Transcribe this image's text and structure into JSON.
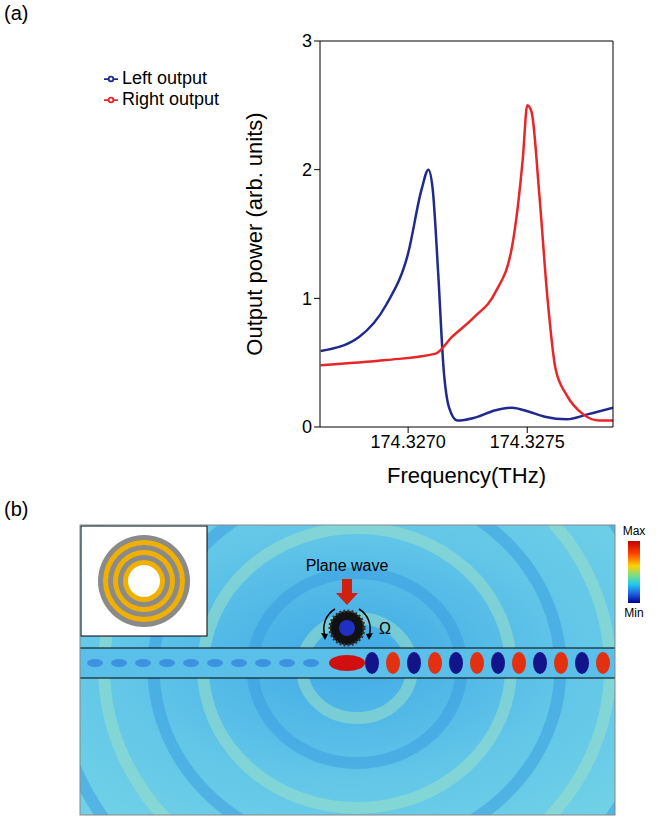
{
  "chart_data": {
    "type": "line",
    "x_label": "Frequency(THz)",
    "y_label": "Output power (arb. units)",
    "xlim": [
      174.32663,
      174.32786
    ],
    "xticks": [
      {
        "value": 174.327,
        "label": "174.3270"
      },
      {
        "value": 174.3275,
        "label": "174.3275"
      }
    ],
    "ylim": [
      0,
      3
    ],
    "yticks": [
      0,
      1,
      2,
      3
    ],
    "legend": "upper left",
    "series": [
      {
        "name": "Left output",
        "color": "#1f2a8c",
        "x": [
          174.326633,
          174.326794,
          174.326908,
          174.327,
          174.327057,
          174.327085,
          174.327103,
          174.327126,
          174.327149,
          174.327172,
          174.327206,
          174.327275,
          174.327367,
          174.327436,
          174.327505,
          174.327574,
          174.327665,
          174.327757,
          174.32786
        ],
        "values": [
          0.59,
          0.7,
          0.95,
          1.35,
          1.85,
          2.0,
          1.85,
          1.2,
          0.45,
          0.15,
          0.05,
          0.07,
          0.13,
          0.15,
          0.12,
          0.08,
          0.06,
          0.1,
          0.15
        ]
      },
      {
        "name": "Right output",
        "color": "#e8262a",
        "x": [
          174.326633,
          174.326908,
          174.327115,
          174.327184,
          174.327275,
          174.327367,
          174.327436,
          174.327482,
          174.3275,
          174.327518,
          174.327551,
          174.327585,
          174.327619,
          174.327665,
          174.327734,
          174.327803,
          174.32786
        ],
        "values": [
          0.48,
          0.52,
          0.57,
          0.7,
          0.85,
          1.05,
          1.4,
          2.1,
          2.5,
          2.45,
          1.8,
          1.0,
          0.45,
          0.25,
          0.1,
          0.05,
          0.05
        ]
      }
    ]
  },
  "panels": {
    "a": "(a)",
    "b": "(b)"
  },
  "field_map": {
    "annotation": "Plane wave",
    "rotation": "Ω",
    "colorbar": {
      "max": "Max",
      "min": "Min"
    }
  }
}
